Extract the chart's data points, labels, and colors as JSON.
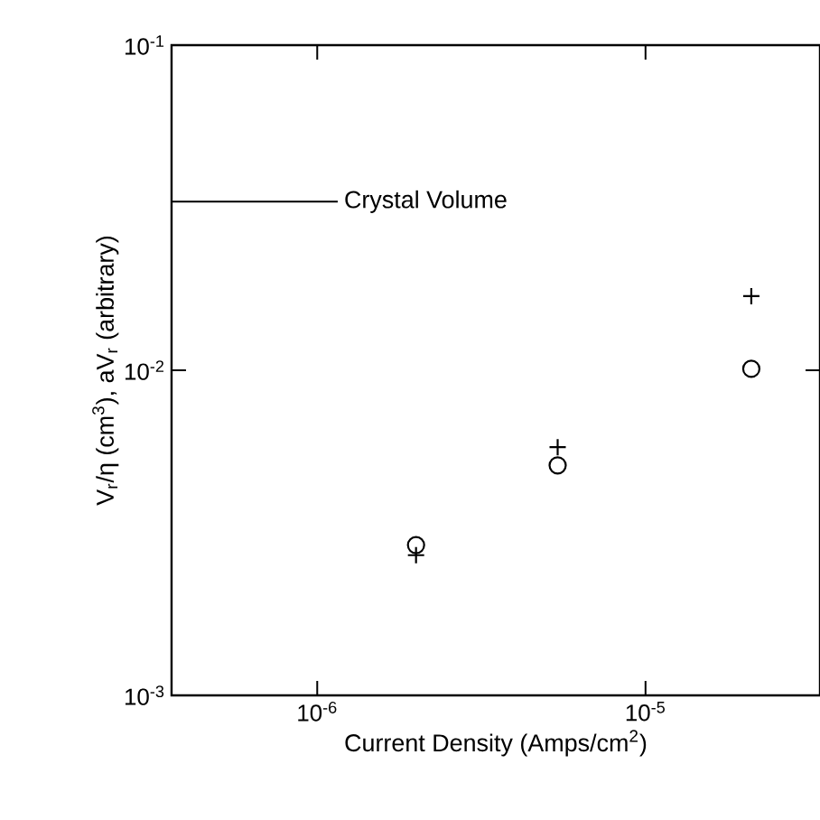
{
  "chart_data": {
    "type": "scatter",
    "xlabel": "Current Density (Amps/cm$^{2}$)",
    "ylabel": "V$_{r}$/η (cm$^{3}$), aV$_{r}$ (arbitrary)",
    "log": "xy",
    "x": [
      2e-06,
      5.4e-06,
      2.1e-05
    ],
    "series": [
      {
        "color": "#000000",
        "marker": "cross",
        "values": [
          0.0027,
          0.0058,
          0.0169
        ]
      },
      {
        "color": "#000000",
        "marker": "circle",
        "values": [
          0.0029,
          0.0051,
          0.0101
        ]
      }
    ],
    "xlim": [
      3.6e-07,
      3.4e-05
    ],
    "ylim": [
      0.001,
      0.1
    ],
    "xticks": [
      {
        "value": 1e-06,
        "label": "10$^{-6}$"
      },
      {
        "value": 1e-05,
        "label": "10$^{-5}$"
      }
    ],
    "yticks": [
      {
        "value": 0.001,
        "label": "10$^{-3}$"
      },
      {
        "value": 0.01,
        "label": "10$^{-2}$"
      },
      {
        "value": 0.1,
        "label": "10$^{-1}$"
      }
    ],
    "ref_lines": [
      {
        "axis": "y",
        "value": 0.033,
        "label": "Crystal Volume"
      }
    ],
    "grid": false,
    "legend": false
  }
}
